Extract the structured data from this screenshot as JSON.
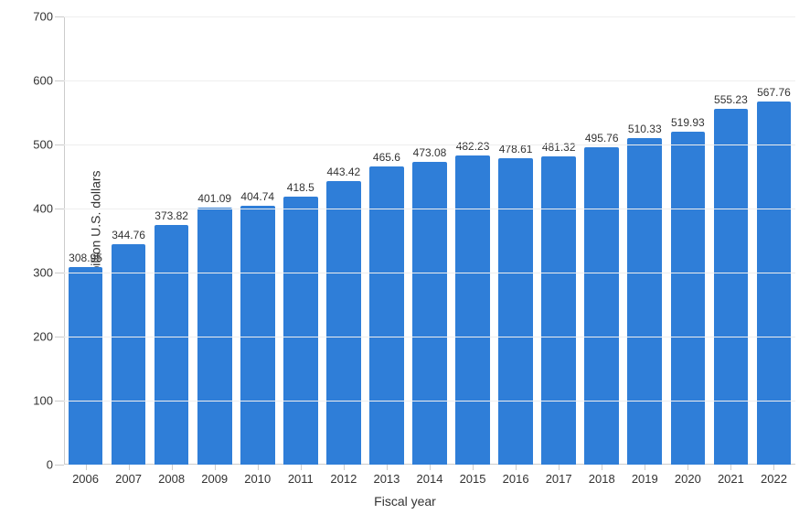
{
  "chart": {
    "type": "bar",
    "ylabel": "Net sales in billion U.S. dollars",
    "xlabel": "Fiscal year",
    "categories": [
      "2006",
      "2007",
      "2008",
      "2009",
      "2010",
      "2011",
      "2012",
      "2013",
      "2014",
      "2015",
      "2016",
      "2017",
      "2018",
      "2019",
      "2020",
      "2021",
      "2022"
    ],
    "values": [
      308.95,
      344.76,
      373.82,
      401.09,
      404.74,
      418.5,
      443.42,
      465.6,
      473.08,
      482.23,
      478.61,
      481.32,
      495.76,
      510.33,
      519.93,
      555.23,
      567.76
    ],
    "value_labels": [
      "308.95",
      "344.76",
      "373.82",
      "401.09",
      "404.74",
      "418.5",
      "443.42",
      "465.6",
      "473.08",
      "482.23",
      "478.61",
      "481.32",
      "495.76",
      "510.33",
      "519.93",
      "555.23",
      "567.76"
    ],
    "bar_color": "#2f7ed8",
    "ylim": [
      0,
      700
    ],
    "yticks": [
      0,
      100,
      200,
      300,
      400,
      500,
      600,
      700
    ],
    "ytick_labels": [
      "0",
      "100",
      "200",
      "300",
      "400",
      "500",
      "600",
      "700"
    ],
    "grid_color": "#eeeeee",
    "axis_color": "#cccccc",
    "background_color": "#ffffff",
    "value_label_fontsize": 12,
    "tick_label_fontsize": 13,
    "axis_label_fontsize": 14,
    "bar_width_ratio": 0.8
  }
}
